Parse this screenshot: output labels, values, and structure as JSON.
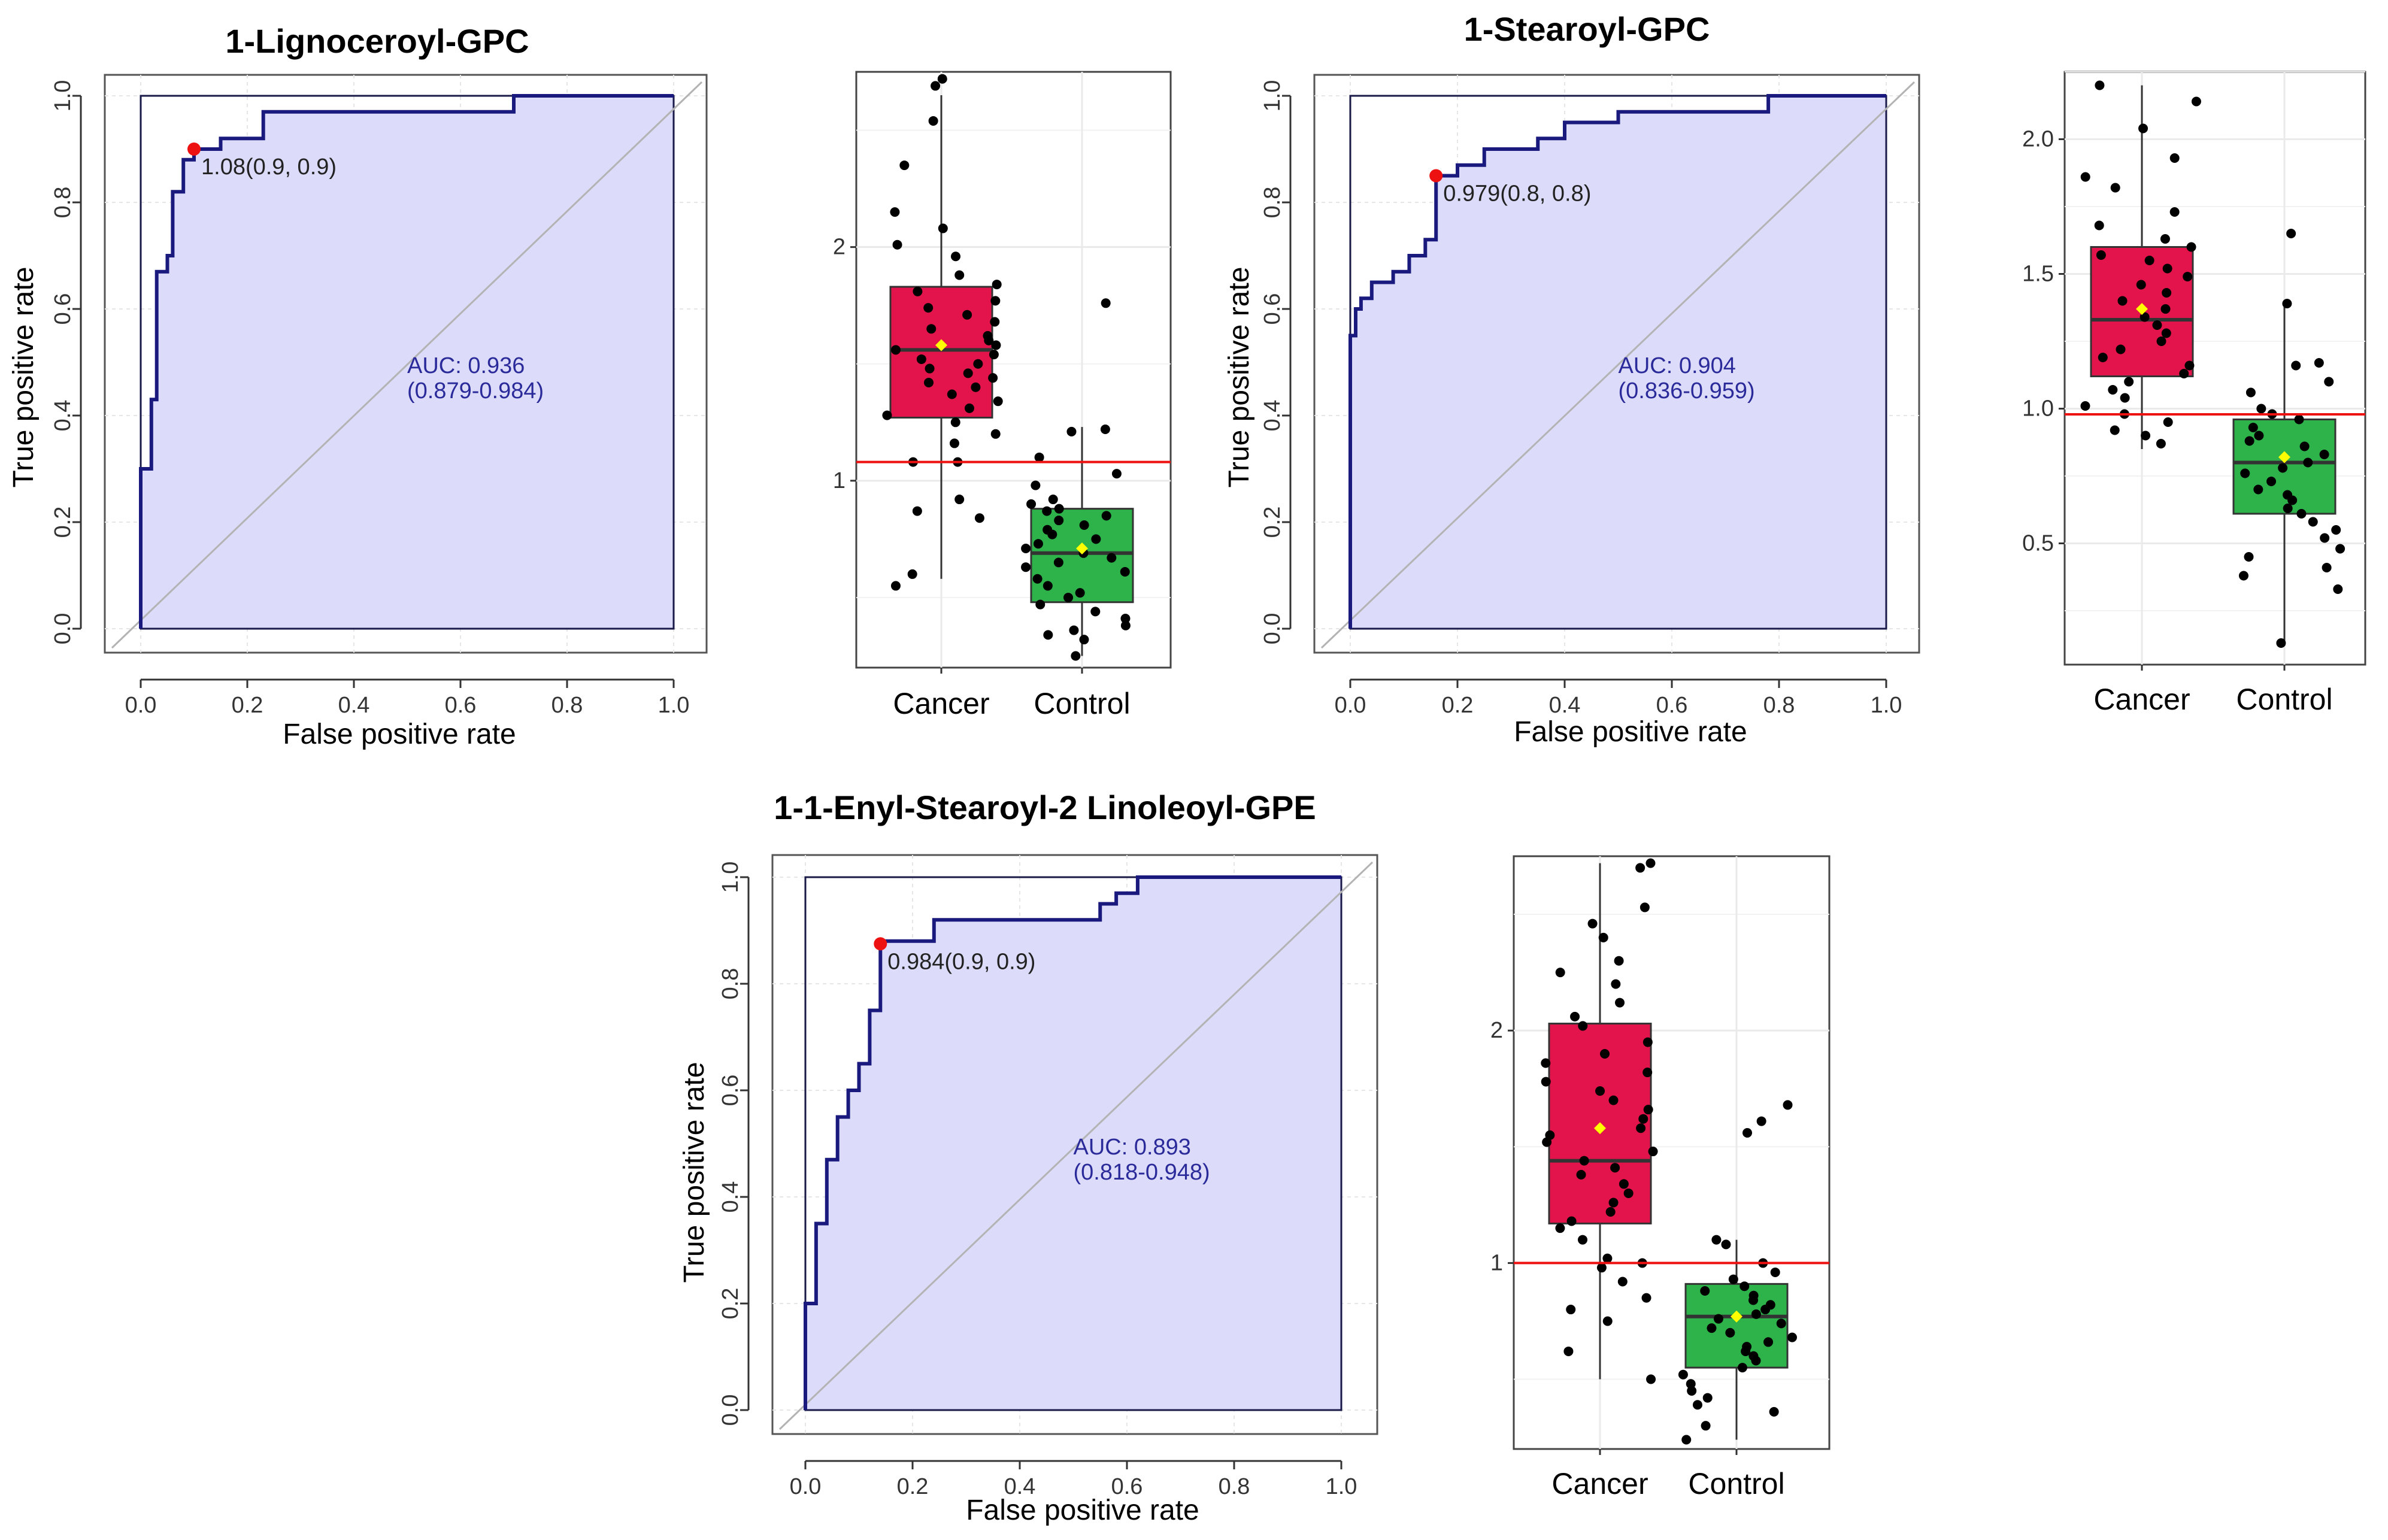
{
  "colors": {
    "roc_line": "#1a1a7e",
    "roc_fill": "#dcdcfa",
    "diagonal": "#b3b3b3",
    "optimal_point": "#ee1111",
    "cancer_box": "#e2144b",
    "control_box": "#2db34a",
    "threshold": "#ee1111",
    "mean_marker": "#ffff00",
    "auc_text": "#2a2a9a",
    "grid": "#e6e6e6",
    "points": "#000000"
  },
  "chart_data": [
    {
      "type": "line",
      "subtype": "roc",
      "title": "1-Lignoceroyl-GPC",
      "xlabel": "False positive rate",
      "ylabel": "True positive rate",
      "xlim": [
        0,
        1
      ],
      "ylim": [
        0,
        1
      ],
      "x_ticks": [
        "0.0",
        "0.2",
        "0.4",
        "0.6",
        "0.8",
        "1.0"
      ],
      "y_ticks": [
        "0.0",
        "0.2",
        "0.4",
        "0.6",
        "0.8",
        "1.0"
      ],
      "fpr": [
        0,
        0,
        0.02,
        0.02,
        0.03,
        0.03,
        0.05,
        0.05,
        0.06,
        0.06,
        0.08,
        0.08,
        0.1,
        0.1,
        0.15,
        0.15,
        0.23,
        0.23,
        0.7,
        0.7,
        1.0
      ],
      "tpr": [
        0,
        0.3,
        0.3,
        0.43,
        0.43,
        0.67,
        0.67,
        0.7,
        0.7,
        0.82,
        0.82,
        0.88,
        0.88,
        0.9,
        0.9,
        0.92,
        0.92,
        0.97,
        0.97,
        1.0,
        1.0
      ],
      "optimal_point": {
        "fpr": 0.1,
        "tpr": 0.9,
        "label": "1.08(0.9, 0.9)"
      },
      "auc_label": "AUC: 0.936",
      "auc_ci": "(0.879-0.984)"
    },
    {
      "type": "box",
      "title": "",
      "categories": [
        "Cancer",
        "Control"
      ],
      "ylim": [
        0.2,
        2.75
      ],
      "y_ticks": [
        1,
        2
      ],
      "threshold": 1.08,
      "boxes": [
        {
          "name": "Cancer",
          "q1": 1.27,
          "median": 1.56,
          "q3": 1.83,
          "whisker_low": 0.58,
          "whisker_high": 2.65,
          "mean": 1.58
        },
        {
          "name": "Control",
          "q1": 0.48,
          "median": 0.69,
          "q3": 0.88,
          "whisker_low": 0.25,
          "whisker_high": 1.23,
          "mean": 0.71
        }
      ],
      "points": [
        [
          2.72,
          2.69,
          2.54,
          2.35,
          2.15,
          2.08,
          2.01,
          1.96,
          1.88,
          1.84,
          1.81,
          1.77,
          1.74,
          1.71,
          1.68,
          1.65,
          1.62,
          1.6,
          1.58,
          1.56,
          1.54,
          1.52,
          1.5,
          1.48,
          1.46,
          1.44,
          1.42,
          1.4,
          1.37,
          1.34,
          1.31,
          1.28,
          1.25,
          1.2,
          1.16,
          1.08,
          1.08,
          0.92,
          0.87,
          0.84,
          0.6,
          0.55
        ],
        [
          1.76,
          1.22,
          1.21,
          1.1,
          1.03,
          0.98,
          0.92,
          0.9,
          0.88,
          0.87,
          0.85,
          0.83,
          0.81,
          0.79,
          0.77,
          0.75,
          0.73,
          0.71,
          0.69,
          0.67,
          0.65,
          0.63,
          0.61,
          0.58,
          0.55,
          0.52,
          0.5,
          0.47,
          0.44,
          0.41,
          0.38,
          0.36,
          0.34,
          0.32,
          0.25
        ]
      ]
    },
    {
      "type": "line",
      "subtype": "roc",
      "title": "1-Stearoyl-GPC",
      "xlabel": "False positive rate",
      "ylabel": "True positive rate",
      "xlim": [
        0,
        1
      ],
      "ylim": [
        0,
        1
      ],
      "x_ticks": [
        "0.0",
        "0.2",
        "0.4",
        "0.6",
        "0.8",
        "1.0"
      ],
      "y_ticks": [
        "0.0",
        "0.2",
        "0.4",
        "0.6",
        "0.8",
        "1.0"
      ],
      "fpr": [
        0,
        0,
        0.01,
        0.01,
        0.02,
        0.02,
        0.04,
        0.04,
        0.08,
        0.08,
        0.11,
        0.11,
        0.14,
        0.14,
        0.16,
        0.16,
        0.2,
        0.2,
        0.25,
        0.25,
        0.35,
        0.35,
        0.4,
        0.4,
        0.5,
        0.5,
        0.58,
        0.58,
        0.78,
        0.78,
        1.0
      ],
      "tpr": [
        0,
        0.55,
        0.55,
        0.6,
        0.6,
        0.62,
        0.62,
        0.65,
        0.65,
        0.67,
        0.67,
        0.7,
        0.7,
        0.73,
        0.73,
        0.85,
        0.85,
        0.87,
        0.87,
        0.9,
        0.9,
        0.92,
        0.92,
        0.95,
        0.95,
        0.97,
        0.97,
        0.97,
        0.97,
        1.0,
        1.0
      ],
      "optimal_point": {
        "fpr": 0.16,
        "tpr": 0.85,
        "label": "0.979(0.8, 0.8)"
      },
      "auc_label": "AUC: 0.904",
      "auc_ci": "(0.836-0.959)"
    },
    {
      "type": "box",
      "title": "",
      "categories": [
        "Cancer",
        "Control"
      ],
      "ylim": [
        0.05,
        2.25
      ],
      "y_ticks": [
        "0.5",
        "1.0",
        "1.5",
        "2.0"
      ],
      "threshold": 0.979,
      "boxes": [
        {
          "name": "Cancer",
          "q1": 1.12,
          "median": 1.33,
          "q3": 1.6,
          "whisker_low": 0.85,
          "whisker_high": 2.2,
          "mean": 1.37
        },
        {
          "name": "Control",
          "q1": 0.61,
          "median": 0.8,
          "q3": 0.96,
          "whisker_low": 0.12,
          "whisker_high": 1.39,
          "mean": 0.82
        }
      ],
      "points": [
        [
          2.2,
          2.14,
          2.04,
          1.93,
          1.86,
          1.82,
          1.73,
          1.68,
          1.63,
          1.6,
          1.57,
          1.55,
          1.52,
          1.49,
          1.46,
          1.43,
          1.4,
          1.37,
          1.34,
          1.31,
          1.28,
          1.25,
          1.22,
          1.19,
          1.16,
          1.13,
          1.1,
          1.07,
          1.04,
          1.01,
          0.98,
          0.95,
          0.92,
          0.9,
          0.87
        ],
        [
          1.65,
          1.39,
          1.17,
          1.16,
          1.1,
          1.06,
          1.0,
          0.98,
          0.96,
          0.93,
          0.9,
          0.88,
          0.86,
          0.83,
          0.8,
          0.78,
          0.76,
          0.73,
          0.7,
          0.68,
          0.66,
          0.63,
          0.61,
          0.58,
          0.55,
          0.52,
          0.48,
          0.45,
          0.41,
          0.38,
          0.33,
          0.13
        ]
      ]
    },
    {
      "type": "line",
      "subtype": "roc",
      "title": "1-1-Enyl-Stearoyl-2 Linoleoyl-GPE",
      "xlabel": "False positive rate",
      "ylabel": "True positive rate",
      "xlim": [
        0,
        1
      ],
      "ylim": [
        0,
        1
      ],
      "x_ticks": [
        "0.0",
        "0.2",
        "0.4",
        "0.6",
        "0.8",
        "1.0"
      ],
      "y_ticks": [
        "0.0",
        "0.2",
        "0.4",
        "0.6",
        "0.8",
        "1.0"
      ],
      "fpr": [
        0,
        0,
        0.02,
        0.02,
        0.04,
        0.04,
        0.06,
        0.06,
        0.08,
        0.08,
        0.1,
        0.1,
        0.12,
        0.12,
        0.14,
        0.14,
        0.24,
        0.24,
        0.55,
        0.55,
        0.58,
        0.58,
        0.62,
        0.62,
        1.0
      ],
      "tpr": [
        0,
        0.2,
        0.2,
        0.35,
        0.35,
        0.47,
        0.47,
        0.55,
        0.55,
        0.6,
        0.6,
        0.65,
        0.65,
        0.75,
        0.75,
        0.88,
        0.88,
        0.92,
        0.92,
        0.95,
        0.95,
        0.97,
        0.97,
        1.0,
        1.0
      ],
      "optimal_point": {
        "fpr": 0.14,
        "tpr": 0.875,
        "label": "0.984(0.9, 0.9)"
      },
      "auc_label": "AUC: 0.893",
      "auc_ci": "(0.818-0.948)"
    },
    {
      "type": "box",
      "title": "",
      "categories": [
        "Cancer",
        "Control"
      ],
      "ylim": [
        0.2,
        2.75
      ],
      "y_ticks": [
        1,
        2
      ],
      "threshold": 1.0,
      "boxes": [
        {
          "name": "Cancer",
          "q1": 1.17,
          "median": 1.44,
          "q3": 2.03,
          "whisker_low": 0.5,
          "whisker_high": 2.72,
          "mean": 1.58
        },
        {
          "name": "Control",
          "q1": 0.55,
          "median": 0.77,
          "q3": 0.91,
          "whisker_low": 0.24,
          "whisker_high": 1.1,
          "mean": 0.77
        }
      ],
      "points": [
        [
          2.72,
          2.7,
          2.53,
          2.46,
          2.4,
          2.3,
          2.25,
          2.2,
          2.12,
          2.06,
          2.02,
          1.95,
          1.9,
          1.86,
          1.82,
          1.78,
          1.74,
          1.7,
          1.66,
          1.62,
          1.58,
          1.55,
          1.52,
          1.48,
          1.44,
          1.41,
          1.38,
          1.34,
          1.3,
          1.26,
          1.22,
          1.18,
          1.15,
          1.1,
          1.02,
          1.0,
          0.98,
          0.92,
          0.85,
          0.8,
          0.75,
          0.62,
          0.5
        ],
        [
          1.68,
          1.61,
          1.56,
          1.1,
          1.08,
          1.0,
          0.96,
          0.93,
          0.9,
          0.88,
          0.86,
          0.84,
          0.82,
          0.8,
          0.78,
          0.76,
          0.74,
          0.72,
          0.7,
          0.68,
          0.66,
          0.64,
          0.62,
          0.6,
          0.58,
          0.55,
          0.52,
          0.48,
          0.45,
          0.42,
          0.39,
          0.36,
          0.3,
          0.24
        ]
      ]
    }
  ]
}
